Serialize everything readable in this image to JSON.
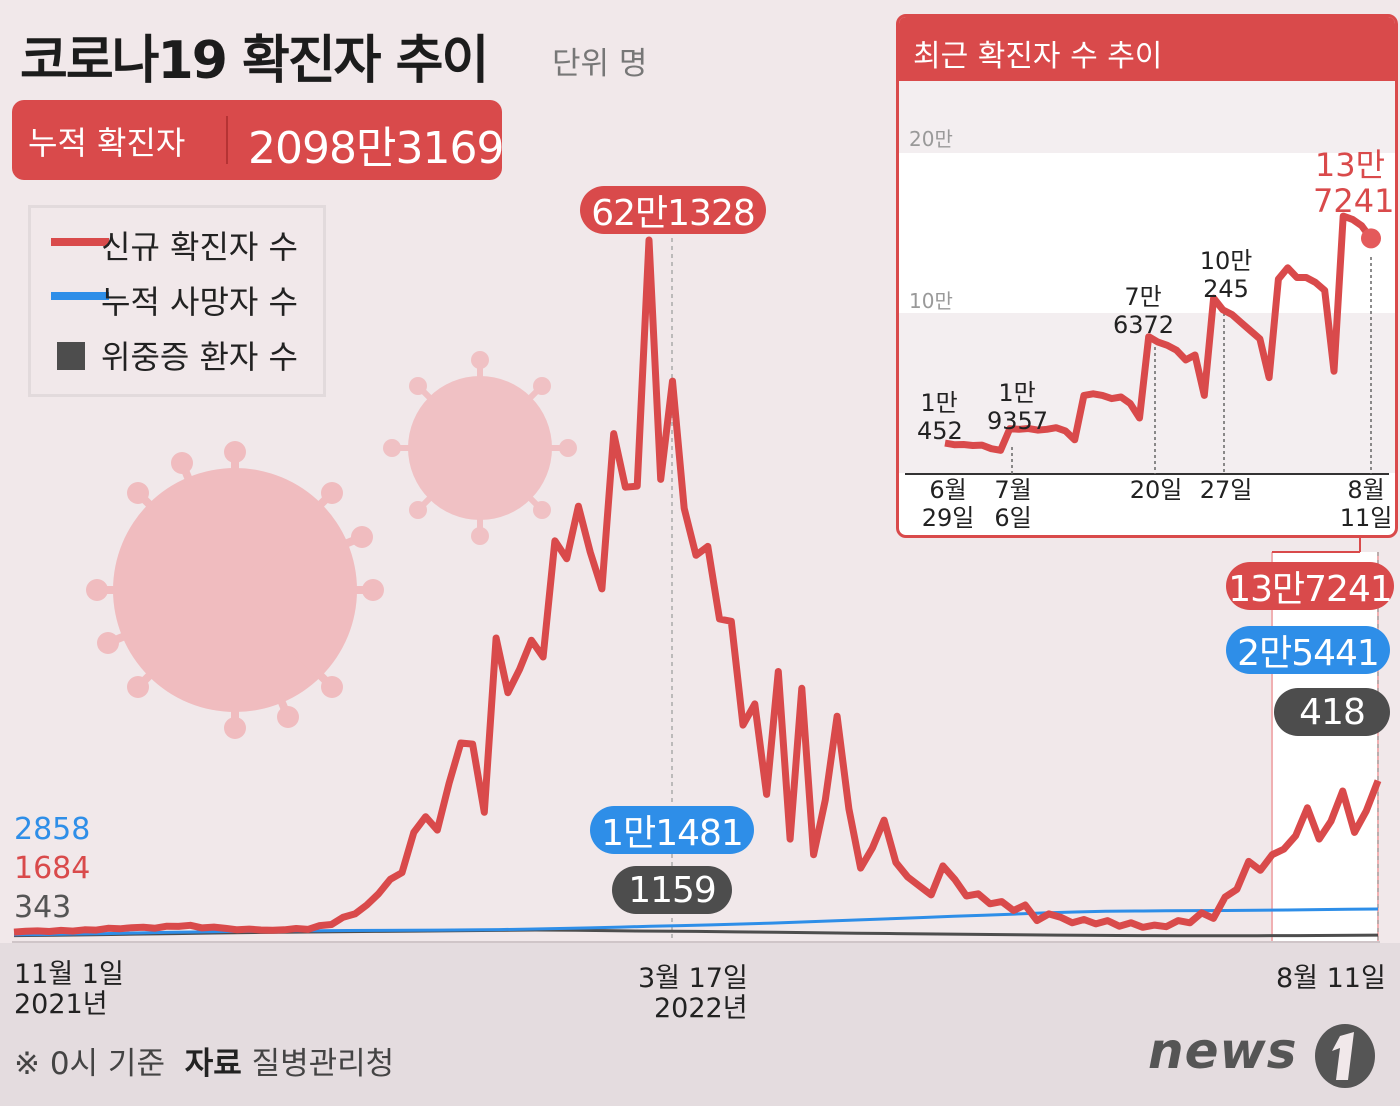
{
  "title": "코로나19 확진자 추이",
  "unit_label": "단위 명",
  "cumulative": {
    "label": "누적 확진자",
    "value": "2098만3169"
  },
  "legend": [
    {
      "label": "신규 확진자 수",
      "color": "#d94a4b",
      "shape": "line"
    },
    {
      "label": "누적 사망자 수",
      "color": "#2e8ee8",
      "shape": "line"
    },
    {
      "label": "위중증 환자 수",
      "color": "#4d4d4d",
      "shape": "square"
    }
  ],
  "colors": {
    "new_cases": "#d94a4b",
    "deaths": "#2e8ee8",
    "severe": "#4d4d4d"
  },
  "start_values": {
    "deaths": "2858",
    "new_cases": "1684",
    "severe": "343"
  },
  "peak": {
    "new_cases": "62만1328",
    "deaths": "1만1481",
    "severe": "1159",
    "date": "3월 17일",
    "year": "2022년"
  },
  "latest": {
    "new_cases": "13만7241",
    "deaths": "2만5441",
    "severe": "418",
    "date": "8월 11일"
  },
  "start": {
    "date": "11월 1일",
    "year": "2021년"
  },
  "chart_data": [
    {
      "type": "line",
      "title": "코로나19 확진자 추이",
      "x_range": [
        "2021-11-01",
        "2022-08-11"
      ],
      "x_ticks": [
        "11월 1일 2021년",
        "3월 17일 2022년",
        "8월 11일"
      ],
      "series": [
        {
          "name": "신규 확진자 수",
          "values": [
            1684,
            2500,
            2800,
            2200,
            3200,
            2600,
            3800,
            3500,
            5100,
            4700,
            5600,
            6100,
            5200,
            7000,
            6800,
            7800,
            5500,
            6200,
            5000,
            3800,
            4400,
            3600,
            3400,
            3800,
            4900,
            4100,
            7500,
            8500,
            15000,
            18000,
            26000,
            36000,
            49000,
            55000,
            91000,
            105000,
            93000,
            135000,
            171000,
            170000,
            109000,
            265000,
            216000,
            237000,
            263000,
            248000,
            352000,
            336000,
            383000,
            342000,
            309000,
            448000,
            400000,
            401000,
            621328,
            407000,
            495000,
            381000,
            339000,
            347000,
            282000,
            280000,
            187000,
            206000,
            125000,
            235000,
            85000,
            220000,
            71000,
            120000,
            195000,
            112000,
            59000,
            77000,
            102000,
            64000,
            51000,
            43000,
            35000,
            61000,
            49000,
            34000,
            36000,
            27000,
            29000,
            21000,
            26000,
            12000,
            18000,
            15000,
            10000,
            13000,
            9000,
            12000,
            7000,
            10000,
            6000,
            8000,
            6500,
            12000,
            10000,
            19000,
            14000,
            33000,
            40000,
            65000,
            57000,
            71000,
            76000,
            88000,
            113000,
            85000,
            101000,
            128000,
            91000,
            110000,
            137241
          ]
        },
        {
          "name": "누적 사망자 수",
          "values": [
            2858,
            3100,
            3500,
            3900,
            4400,
            4900,
            5300,
            5700,
            6000,
            6200,
            6400,
            6600,
            6700,
            6800,
            6900,
            7100,
            7400,
            7800,
            8300,
            8900,
            9600,
            10300,
            10900,
            11481,
            12300,
            13100,
            14000,
            15000,
            16000,
            17000,
            18000,
            19000,
            20000,
            21000,
            22000,
            22800,
            23400,
            23700,
            23900,
            24000,
            24100,
            24300,
            24600,
            24900,
            25200,
            25441
          ]
        },
        {
          "name": "위중증 환자 수",
          "values": [
            343,
            400,
            480,
            560,
            640,
            720,
            790,
            850,
            900,
            950,
            1000,
            1050,
            1100,
            1159,
            1120,
            1050,
            1000,
            950,
            880,
            820,
            760,
            700,
            640,
            580,
            520,
            460,
            420,
            380,
            350,
            330,
            320,
            330,
            350,
            380,
            418
          ]
        }
      ]
    },
    {
      "type": "line",
      "title": "최근 확진자 수 추이",
      "y_ticks": [
        "10만",
        "20만"
      ],
      "ylim": [
        0,
        200000
      ],
      "x_ticks": [
        "6월 29일",
        "7월 6일",
        "20일",
        "27일",
        "8월 11일"
      ],
      "annotations": [
        {
          "x": "6월 29일",
          "text": "1만 452"
        },
        {
          "x": "7월 6일",
          "text": "1만 9357"
        },
        {
          "x": "20일",
          "text": "7만 6372"
        },
        {
          "x": "27일",
          "text": "10만 245"
        },
        {
          "x": "8월 11일",
          "text": "13만 7241"
        }
      ],
      "series": [
        {
          "name": "신규 확진자 수",
          "values": [
            10452,
            9500,
            9600,
            9000,
            9200,
            7000,
            6000,
            19357,
            19000,
            19500,
            18500,
            19000,
            20000,
            18000,
            12500,
            40000,
            41000,
            40000,
            38000,
            39000,
            35000,
            26000,
            76372,
            73000,
            71000,
            68000,
            62000,
            65000,
            40000,
            100245,
            93000,
            90000,
            85000,
            80000,
            75000,
            51000,
            112000,
            119000,
            113000,
            113000,
            110000,
            105000,
            55000,
            151000,
            149000,
            145000,
            137241
          ]
        }
      ]
    }
  ],
  "inset": {
    "title": "최근 확진자 수 추이",
    "y_tick_10": "10만",
    "y_tick_20": "20만",
    "ann": [
      {
        "a": "1만",
        "b": "452"
      },
      {
        "a": "1만",
        "b": "9357"
      },
      {
        "a": "7만",
        "b": "6372"
      },
      {
        "a": "10만",
        "b": "245"
      },
      {
        "a": "13만",
        "b": "7241"
      }
    ],
    "xt": [
      {
        "a": "6월",
        "b": "29일"
      },
      {
        "a": "7월",
        "b": "6일"
      },
      {
        "a": "",
        "b": "20일"
      },
      {
        "a": "",
        "b": "27일"
      },
      {
        "a": "8월",
        "b": "11일"
      }
    ]
  },
  "footnote": {
    "prefix": "※ 0시 기준",
    "source_label": "자료",
    "source": "질병관리청"
  },
  "logo": "news1"
}
